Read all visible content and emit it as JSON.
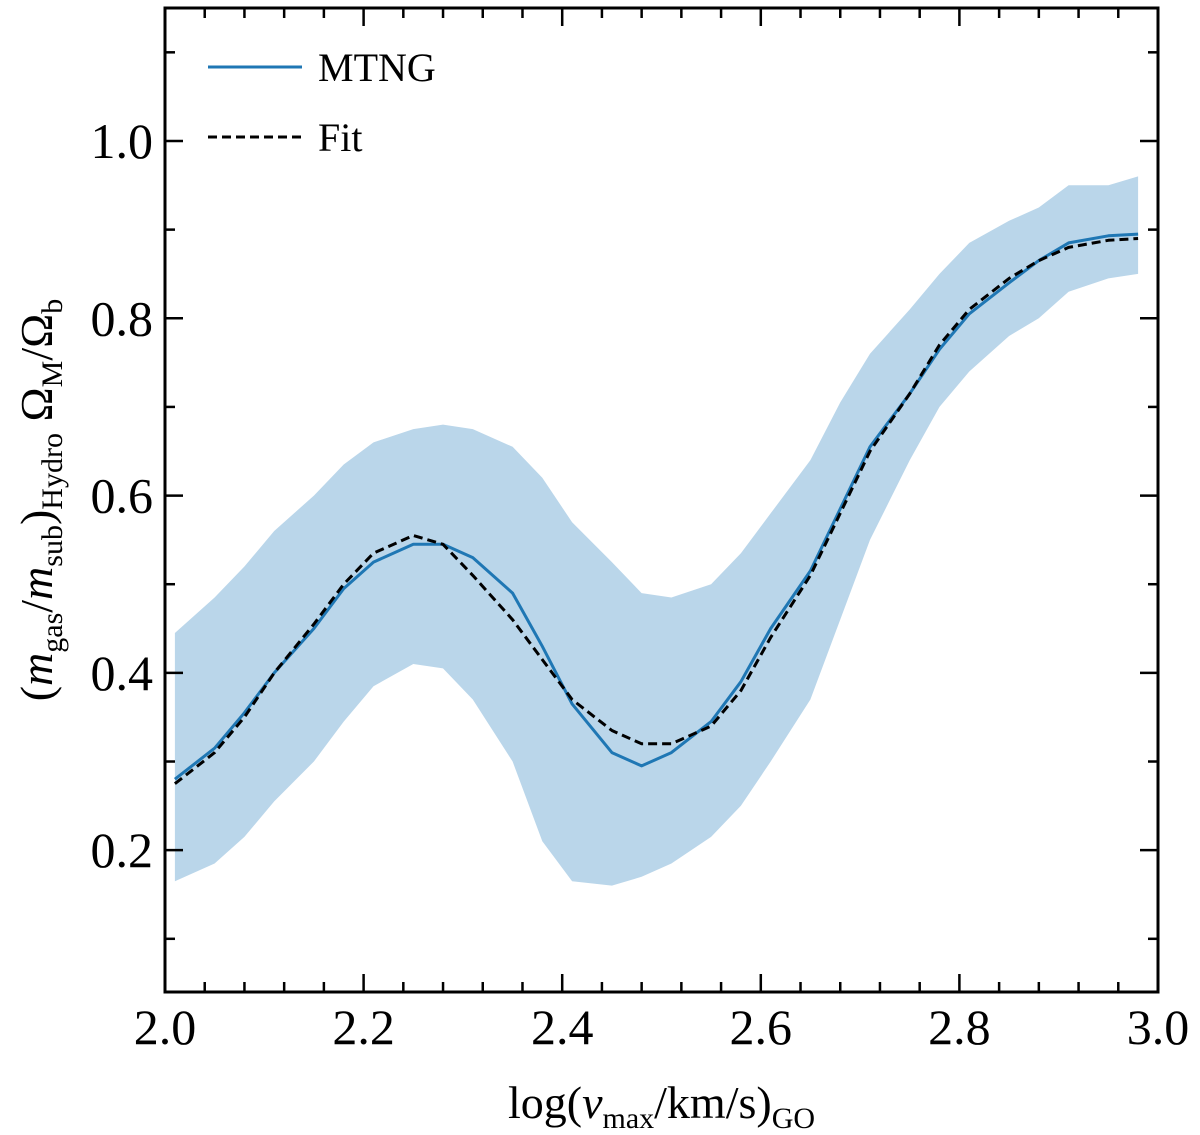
{
  "chart_data": {
    "type": "line",
    "xlabel": "log(v_max/km/s)_GO",
    "ylabel": "(m_gas/m_sub)_Hydro Ω_M/Ω_b",
    "xlim": [
      2.0,
      3.0
    ],
    "ylim": [
      0.04,
      1.15
    ],
    "x_ticks": [
      2.0,
      2.2,
      2.4,
      2.6,
      2.8,
      3.0
    ],
    "x_tick_labels": [
      "2.0",
      "2.2",
      "2.4",
      "2.6",
      "2.8",
      "3.0"
    ],
    "y_ticks": [
      0.2,
      0.4,
      0.6,
      0.8,
      1.0
    ],
    "y_tick_labels": [
      "0.2",
      "0.4",
      "0.6",
      "0.8",
      "1.0"
    ],
    "legend": {
      "position": "top-left",
      "entries": [
        {
          "label": "MTNG",
          "color": "#1f77b4",
          "style": "solid"
        },
        {
          "label": "Fit",
          "color": "#000000",
          "style": "dashed"
        }
      ]
    },
    "band": {
      "color": "#bad6ea",
      "x": [
        2.01,
        2.05,
        2.08,
        2.11,
        2.15,
        2.18,
        2.21,
        2.25,
        2.28,
        2.31,
        2.35,
        2.38,
        2.41,
        2.45,
        2.48,
        2.51,
        2.55,
        2.58,
        2.61,
        2.65,
        2.68,
        2.71,
        2.75,
        2.78,
        2.81,
        2.85,
        2.88,
        2.91,
        2.95,
        2.98
      ],
      "upper": [
        0.445,
        0.485,
        0.52,
        0.56,
        0.6,
        0.635,
        0.66,
        0.675,
        0.68,
        0.675,
        0.655,
        0.62,
        0.57,
        0.525,
        0.49,
        0.485,
        0.5,
        0.535,
        0.58,
        0.64,
        0.705,
        0.76,
        0.81,
        0.85,
        0.885,
        0.91,
        0.925,
        0.95,
        0.95,
        0.96
      ],
      "lower": [
        0.165,
        0.185,
        0.215,
        0.255,
        0.3,
        0.345,
        0.385,
        0.41,
        0.405,
        0.37,
        0.3,
        0.21,
        0.165,
        0.16,
        0.17,
        0.185,
        0.215,
        0.25,
        0.3,
        0.37,
        0.46,
        0.55,
        0.64,
        0.7,
        0.74,
        0.78,
        0.8,
        0.83,
        0.845,
        0.85
      ]
    },
    "series": [
      {
        "name": "MTNG",
        "color": "#1f77b4",
        "style": "solid",
        "x": [
          2.01,
          2.05,
          2.08,
          2.11,
          2.15,
          2.18,
          2.21,
          2.25,
          2.28,
          2.31,
          2.35,
          2.38,
          2.41,
          2.45,
          2.48,
          2.51,
          2.55,
          2.58,
          2.61,
          2.65,
          2.68,
          2.71,
          2.75,
          2.78,
          2.81,
          2.85,
          2.88,
          2.91,
          2.95,
          2.98
        ],
        "y": [
          0.28,
          0.315,
          0.355,
          0.4,
          0.45,
          0.495,
          0.525,
          0.545,
          0.545,
          0.53,
          0.49,
          0.43,
          0.365,
          0.31,
          0.295,
          0.31,
          0.345,
          0.39,
          0.45,
          0.515,
          0.585,
          0.655,
          0.715,
          0.765,
          0.805,
          0.84,
          0.865,
          0.885,
          0.893,
          0.895
        ]
      },
      {
        "name": "Fit",
        "color": "#000000",
        "style": "dashed",
        "x": [
          2.01,
          2.05,
          2.08,
          2.11,
          2.15,
          2.18,
          2.21,
          2.25,
          2.28,
          2.31,
          2.35,
          2.38,
          2.41,
          2.45,
          2.48,
          2.51,
          2.55,
          2.58,
          2.61,
          2.65,
          2.68,
          2.71,
          2.75,
          2.78,
          2.81,
          2.85,
          2.88,
          2.91,
          2.95,
          2.98
        ],
        "y": [
          0.275,
          0.31,
          0.35,
          0.4,
          0.455,
          0.5,
          0.535,
          0.555,
          0.545,
          0.51,
          0.46,
          0.415,
          0.37,
          0.335,
          0.32,
          0.32,
          0.34,
          0.38,
          0.44,
          0.51,
          0.58,
          0.65,
          0.715,
          0.77,
          0.81,
          0.845,
          0.865,
          0.88,
          0.888,
          0.89
        ]
      }
    ]
  }
}
